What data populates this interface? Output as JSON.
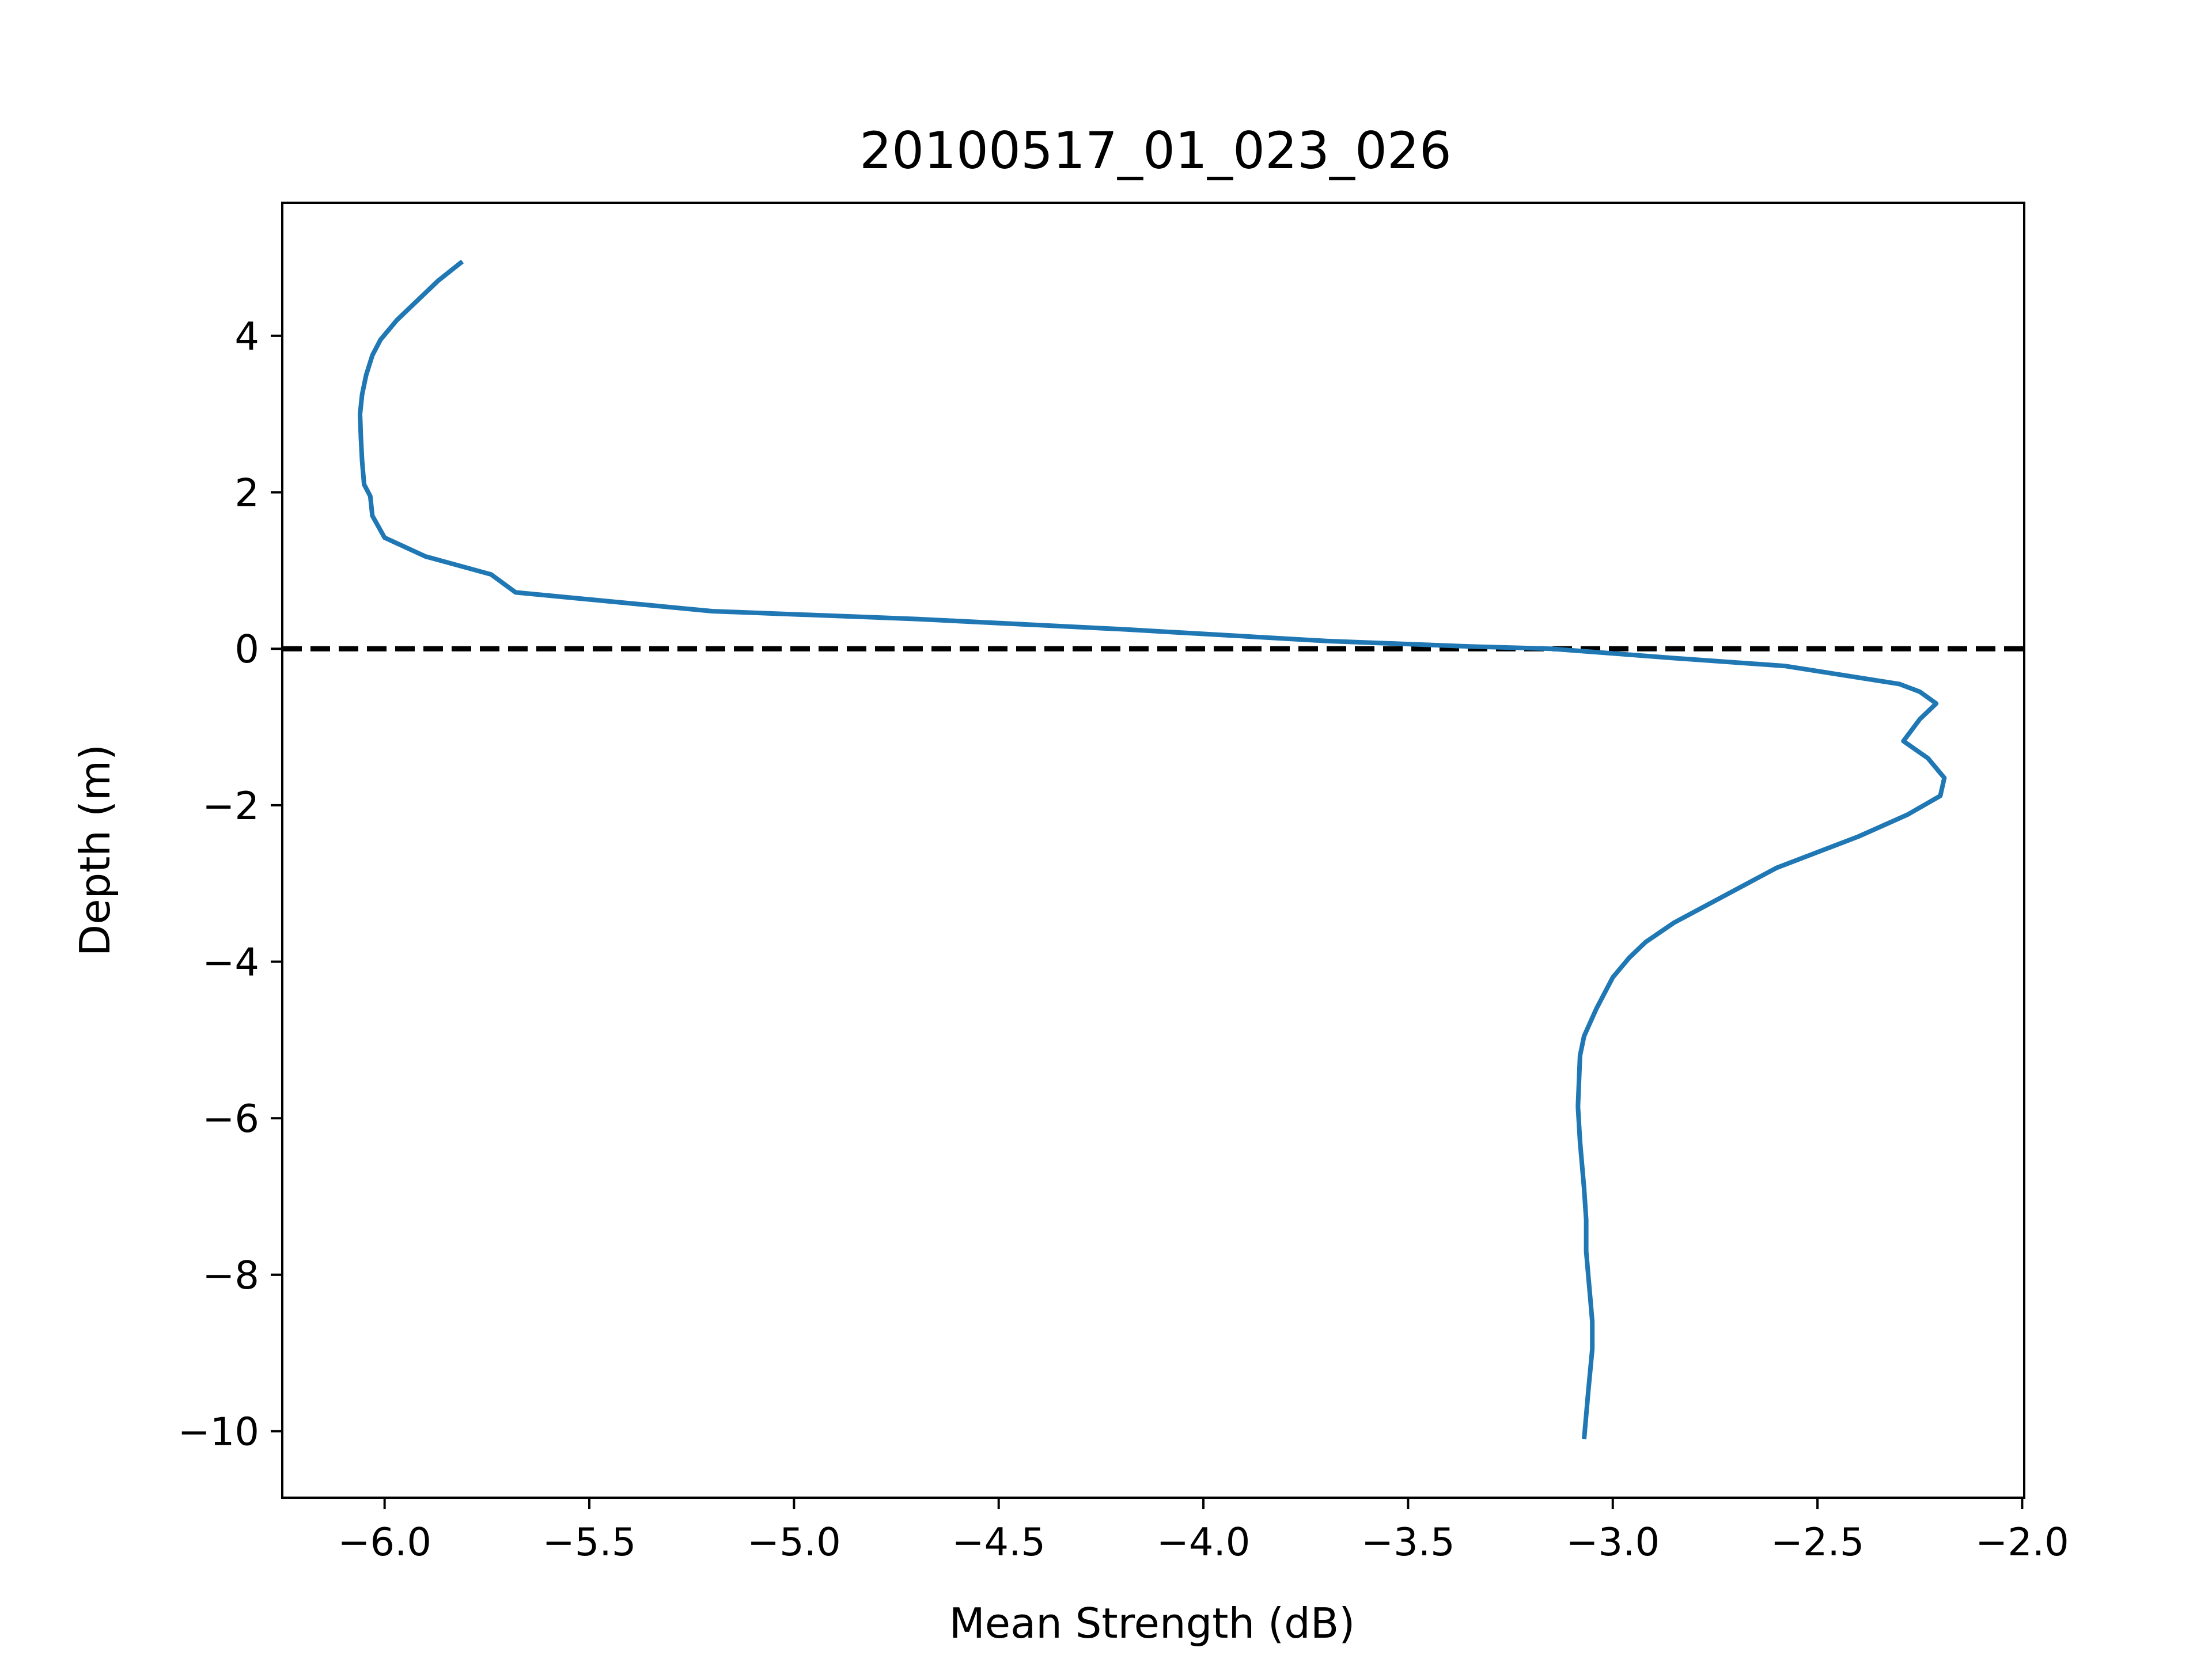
{
  "chart_data": {
    "type": "line",
    "title": "20100517_01_023_026",
    "xlabel": "Mean Strength (dB)",
    "ylabel": "Depth (m)",
    "xlim": [
      -6.25,
      -1.995
    ],
    "ylim": [
      -10.85,
      5.7
    ],
    "xticks": [
      -6.0,
      -5.5,
      -5.0,
      -4.5,
      -4.0,
      -3.5,
      -3.0,
      -2.5,
      -2.0
    ],
    "xtick_labels": [
      "−6.0",
      "−5.5",
      "−5.0",
      "−4.5",
      "−4.0",
      "−3.5",
      "−3.0",
      "−2.5",
      "−2.0"
    ],
    "yticks": [
      4,
      2,
      0,
      -2,
      -4,
      -6,
      -8,
      -10
    ],
    "ytick_labels": [
      "4",
      "2",
      "0",
      "−2",
      "−4",
      "−6",
      "−8",
      "−10"
    ],
    "grid": false,
    "reference_line": {
      "y": 0,
      "style": "dashed",
      "color": "#000000"
    },
    "series": [
      {
        "color": "#1f77b4",
        "x": [
          -5.81,
          -5.87,
          -5.92,
          -5.97,
          -6.01,
          -6.03,
          -6.045,
          -6.055,
          -6.06,
          -6.058,
          -6.055,
          -6.05,
          -6.035,
          -6.03,
          -6.0,
          -5.9,
          -5.74,
          -5.68,
          -5.2,
          -4.7,
          -4.2,
          -3.7,
          -3.35,
          -3.15,
          -2.85,
          -2.58,
          -2.3,
          -2.25,
          -2.21,
          -2.25,
          -2.29,
          -2.23,
          -2.19,
          -2.2,
          -2.28,
          -2.4,
          -2.6,
          -2.85,
          -2.92,
          -2.96,
          -3.0,
          -3.04,
          -3.07,
          -3.08,
          -3.085,
          -3.08,
          -3.07,
          -3.065,
          -3.065,
          -3.06,
          -3.055,
          -3.05,
          -3.05,
          -3.06,
          -3.07
        ],
        "y": [
          4.95,
          4.7,
          4.45,
          4.2,
          3.95,
          3.75,
          3.5,
          3.25,
          3.0,
          2.7,
          2.4,
          2.1,
          1.95,
          1.7,
          1.42,
          1.18,
          0.95,
          0.72,
          0.48,
          0.38,
          0.25,
          0.1,
          0.03,
          0.0,
          -0.12,
          -0.22,
          -0.45,
          -0.55,
          -0.7,
          -0.9,
          -1.18,
          -1.4,
          -1.65,
          -1.88,
          -2.12,
          -2.4,
          -2.8,
          -3.5,
          -3.75,
          -3.95,
          -4.2,
          -4.6,
          -4.95,
          -5.2,
          -5.85,
          -6.3,
          -6.9,
          -7.3,
          -7.7,
          -8.0,
          -8.3,
          -8.6,
          -8.95,
          -9.5,
          -10.1
        ]
      }
    ]
  }
}
